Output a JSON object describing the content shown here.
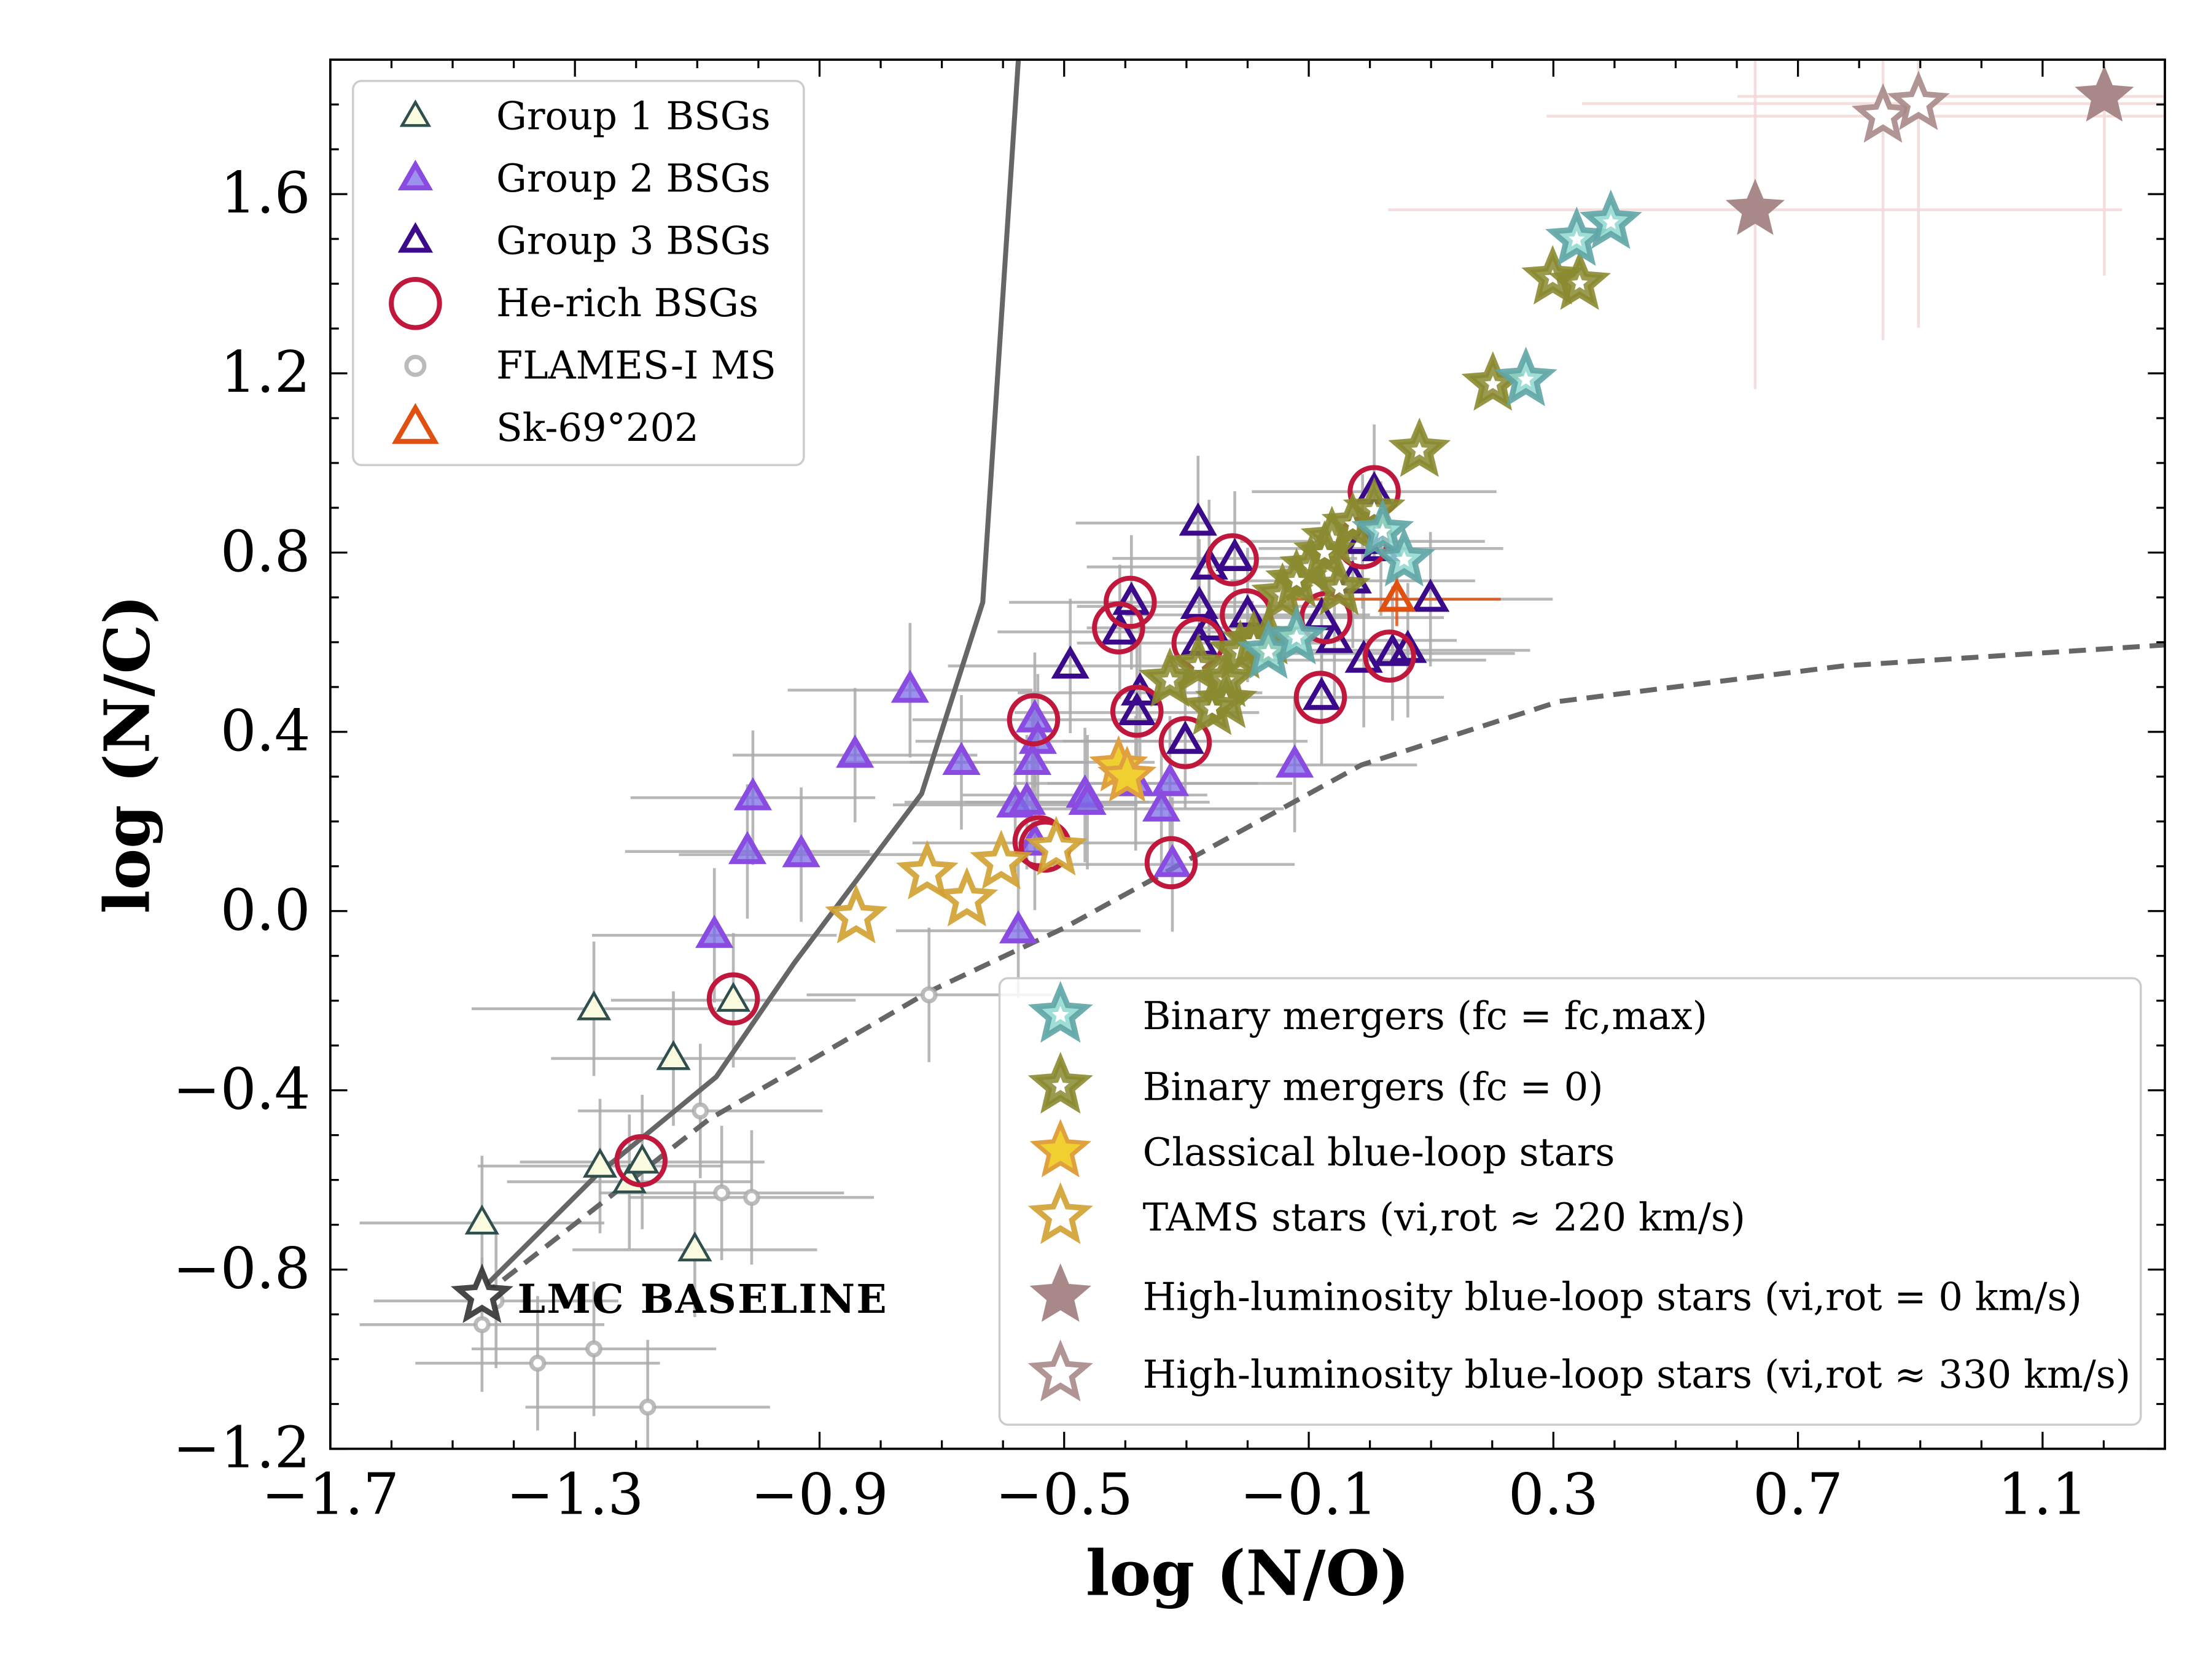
{
  "chart_data": {
    "type": "scatter",
    "xlabel": "log (N/O)",
    "ylabel": "log (N/C)",
    "xlim": [
      -1.7,
      1.3
    ],
    "ylim": [
      -1.2,
      1.9
    ],
    "xticks": [
      -1.7,
      -1.3,
      -0.9,
      -0.5,
      -0.1,
      0.3,
      0.7,
      1.1
    ],
    "xtick_labels": [
      "−1.7",
      "−1.3",
      "−0.9",
      "−0.5",
      "−0.1",
      "0.3",
      "0.7",
      "1.1"
    ],
    "yticks": [
      -1.2,
      -0.8,
      -0.4,
      0.0,
      0.4,
      0.8,
      1.2,
      1.6
    ],
    "ytick_labels": [
      "−1.2",
      "−0.8",
      "−0.4",
      "0.0",
      "0.4",
      "0.8",
      "1.2",
      "1.6"
    ],
    "grid": false,
    "annotation": "LMC BASELINE",
    "lines": [
      {
        "style": "solid",
        "color": "#666666",
        "x": [
          -1.452,
          -1.266,
          -1.069,
          -0.942,
          -0.733,
          -0.633,
          -0.575
        ],
        "y": [
          -0.844,
          -0.591,
          -0.37,
          -0.117,
          0.262,
          0.689,
          1.9
        ]
      },
      {
        "style": "dashed",
        "color": "#666666",
        "x": [
          -1.452,
          -1.081,
          -0.721,
          -0.501,
          -0.014,
          0.31,
          0.774,
          1.3
        ],
        "y": [
          -0.86,
          -0.465,
          -0.18,
          -0.038,
          0.326,
          0.468,
          0.547,
          0.594
        ]
      }
    ],
    "legend_upper": {
      "placement": "top-left",
      "entries": [
        "Group 1 BSGs",
        "Group 2 BSGs",
        "Group 3 BSGs",
        "He-rich BSGs",
        "FLAMES-I MS",
        "Sk-69°202"
      ]
    },
    "legend_lower": {
      "placement": "bottom-right",
      "entries": [
        "Binary mergers (fc = fc,max)",
        "Binary mergers (fc = 0)",
        "Classical blue-loop stars",
        "TAMS stars (vi,rot ≈ 220 km/s)",
        "High-luminosity blue-loop stars (vi,rot = 0 km/s)",
        "High-luminosity blue-loop stars (vi,rot ≈ 330 km/s)"
      ]
    },
    "series": [
      {
        "name": "FLAMES-I MS",
        "marker": "dot",
        "color": "#aaaaaa",
        "xerr": 0.2,
        "yerr": 0.15,
        "x": [
          -1.452,
          -1.361,
          -1.269,
          -1.181,
          -1.095,
          -1.06,
          -1.011,
          -0.721,
          -1.429
        ],
        "y": [
          -0.923,
          -1.009,
          -0.977,
          -1.107,
          -0.446,
          -0.629,
          -0.639,
          -0.187,
          -0.87
        ]
      },
      {
        "name": "Group 1 BSGs",
        "marker": "triangle",
        "color": "#2f4f4f",
        "fill": "#fbfbe0",
        "xerr": 0.2,
        "yerr": 0.15,
        "x": [
          -1.269,
          -1.139,
          -1.041,
          -1.259,
          -1.211,
          -1.19,
          -1.452,
          -1.104
        ],
        "y": [
          -0.218,
          -0.329,
          -0.199,
          -0.569,
          -0.604,
          -0.56,
          -0.696,
          -0.756
        ]
      },
      {
        "name": "Group 2 BSGs",
        "marker": "triangle",
        "color": "#8a4be0",
        "fill": "#7b6ee8",
        "xerr": 0.2,
        "yerr": 0.15,
        "x": [
          -0.752,
          -0.842,
          -1.009,
          -1.018,
          -0.93,
          -1.072,
          -0.668,
          -0.548,
          -0.543,
          -0.552,
          -0.58,
          -0.561,
          -0.548,
          -0.575,
          -0.466,
          -0.462,
          -0.383,
          -0.327,
          -0.341,
          -0.323,
          -0.123
        ],
        "y": [
          0.493,
          0.348,
          0.253,
          0.133,
          0.126,
          -0.054,
          0.332,
          0.427,
          0.379,
          0.332,
          0.237,
          0.243,
          0.152,
          -0.044,
          0.259,
          0.243,
          0.285,
          0.285,
          0.228,
          0.104,
          0.326
        ]
      },
      {
        "name": "Group 3 BSGs",
        "marker": "triangle",
        "color": "#3a0a8a",
        "fill": "none",
        "xerr": 0.2,
        "yerr": 0.15,
        "x": [
          -0.281,
          -0.263,
          -0.221,
          -0.39,
          -0.409,
          -0.49,
          -0.376,
          -0.381,
          -0.279,
          -0.263,
          -0.279,
          -0.2,
          -0.302,
          -0.079,
          -0.079,
          -0.058,
          -0.028,
          0.007,
          -0.012,
          0.018,
          -0.01,
          0.037,
          0.062,
          0.099
        ],
        "y": [
          0.866,
          0.768,
          0.787,
          0.689,
          0.623,
          0.547,
          0.487,
          0.443,
          0.68,
          0.632,
          0.598,
          0.661,
          0.379,
          0.477,
          0.655,
          0.604,
          0.737,
          0.936,
          0.825,
          0.809,
          0.56,
          0.575,
          0.582,
          0.696
        ]
      },
      {
        "name": "He-rich BSGs",
        "marker": "circle",
        "color": "#c0183c",
        "fill": "none",
        "x": [
          -0.225,
          -0.392,
          -0.411,
          -0.55,
          -0.541,
          -0.531,
          -0.281,
          -0.202,
          -0.381,
          -0.302,
          -0.325,
          -0.081,
          -0.072,
          0.007,
          -0.012,
          0.032,
          -1.041,
          -1.192
        ],
        "y": [
          0.784,
          0.689,
          0.632,
          0.427,
          0.155,
          0.145,
          0.598,
          0.661,
          0.446,
          0.376,
          0.108,
          0.477,
          0.655,
          0.936,
          0.822,
          0.569,
          -0.196,
          -0.557
        ]
      },
      {
        "name": "Binary mergers (fc = 0)",
        "marker": "star-open",
        "color": "#8a8a30",
        "fill": "#8a8a30",
        "x": [
          0.081,
          0.201,
          0.299,
          0.343,
          -0.281,
          -0.235,
          -0.212,
          -0.166,
          -0.143,
          -0.097,
          -0.062,
          -0.028,
          0.007,
          -0.235,
          -0.327,
          -0.12,
          -0.074,
          -0.258,
          -0.19,
          -0.05
        ],
        "y": [
          1.028,
          1.176,
          1.413,
          1.401,
          0.547,
          0.515,
          0.578,
          0.61,
          0.705,
          0.768,
          0.831,
          0.863,
          0.895,
          0.468,
          0.515,
          0.737,
          0.799,
          0.452,
          0.6,
          0.72
        ]
      },
      {
        "name": "Binary mergers (fc = fc,max)",
        "marker": "star-open",
        "color": "#5fa5a5",
        "fill": "#8ed8d0",
        "x": [
          0.255,
          0.338,
          0.394,
          0.021,
          0.056,
          -0.166,
          -0.12
        ],
        "y": [
          1.186,
          1.499,
          1.537,
          0.847,
          0.784,
          0.578,
          0.61
        ]
      },
      {
        "name": "Classical blue-loop stars",
        "marker": "star-filled",
        "color": "#e0a040",
        "fill": "#f0d030",
        "x": [
          -0.411,
          -0.397
        ],
        "y": [
          0.323,
          0.3
        ]
      },
      {
        "name": "TAMS stars (vi,rot ≈ 220 km/s)",
        "marker": "star-open",
        "color": "#d0a030",
        "fill": "#ffffff",
        "x": [
          -0.84,
          -0.724,
          -0.659,
          -0.603,
          -0.513
        ],
        "y": [
          -0.013,
          0.085,
          0.025,
          0.108,
          0.139
        ]
      },
      {
        "name": "High-luminosity blue-loop stars (vi,rot = 0 km/s)",
        "marker": "star-filled",
        "color": "#a88888",
        "fill": "#a88888",
        "xerr": 0.6,
        "yerr": 0.4,
        "errcolor": "#f2d8d8",
        "x": [
          0.63,
          1.201
        ],
        "y": [
          1.565,
          1.818
        ]
      },
      {
        "name": "High-luminosity blue-loop stars (vi,rot ≈ 330 km/s)",
        "marker": "star-open",
        "color": "#a88888",
        "fill": "#ffffff",
        "xerr": 0.55,
        "yerr": 0.5,
        "errcolor": "#f2d8d8",
        "x": [
          0.839,
          0.897
        ],
        "y": [
          1.774,
          1.802
        ]
      },
      {
        "name": "Sk-69°202",
        "marker": "triangle",
        "color": "#e05010",
        "fill": "none",
        "xerr": 0.17,
        "yerr": 0.06,
        "errcolor": "#e05010",
        "x": [
          0.044
        ],
        "y": [
          0.696
        ]
      },
      {
        "name": "LMC BASELINE",
        "marker": "star-open",
        "color": "#333333",
        "fill": "#ffffff",
        "x": [
          -1.452
        ],
        "y": [
          -0.86
        ]
      }
    ]
  }
}
